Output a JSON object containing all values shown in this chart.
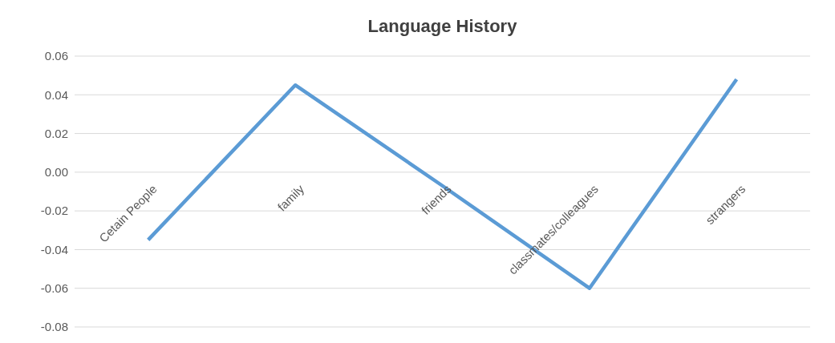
{
  "chart_data": {
    "type": "line",
    "title": "Language History",
    "categories": [
      "Cetain People",
      "family",
      "friends",
      "classmates/colleagues",
      "strangers"
    ],
    "series": [
      {
        "color": "#5b9bd5",
        "values": [
          -0.035,
          0.045,
          -0.007,
          -0.06,
          0.048
        ]
      }
    ],
    "ylim": [
      -0.08,
      0.06
    ],
    "yticks": [
      {
        "value": -0.08,
        "label": "-0.08"
      },
      {
        "value": -0.06,
        "label": "-0.06"
      },
      {
        "value": -0.04,
        "label": "-0.04"
      },
      {
        "value": -0.02,
        "label": "-0.02"
      },
      {
        "value": 0,
        "label": "0.00"
      },
      {
        "value": 0.02,
        "label": "0.02"
      },
      {
        "value": 0.04,
        "label": "0.04"
      },
      {
        "value": 0.06,
        "label": "0.06"
      }
    ],
    "grid": "y",
    "marker": "none",
    "line_style": "solid"
  }
}
